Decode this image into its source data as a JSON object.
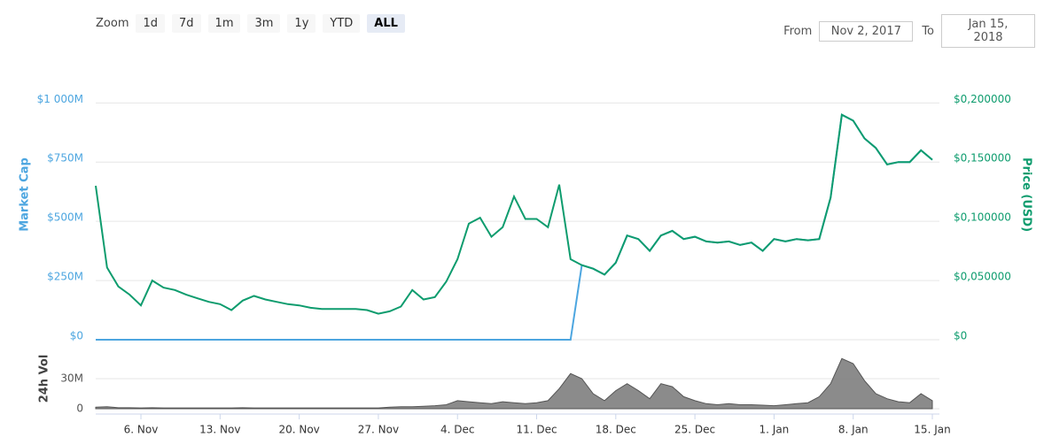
{
  "toolbar": {
    "zoom_label": "Zoom",
    "buttons": [
      "1d",
      "7d",
      "1m",
      "3m",
      "1y",
      "YTD",
      "ALL"
    ],
    "active_index": 6,
    "from_label": "From",
    "from_value": "Nov 2, 2017",
    "to_label": "To",
    "to_value": "Jan 15, 2018"
  },
  "chart_data": [
    {
      "type": "line",
      "ylabel": "Market Cap",
      "y2label": "Price (USD)",
      "x": [
        "2017-11-02",
        "2017-11-03",
        "2017-11-04",
        "2017-11-05",
        "2017-11-06",
        "2017-11-07",
        "2017-11-08",
        "2017-11-09",
        "2017-11-10",
        "2017-11-11",
        "2017-11-12",
        "2017-11-13",
        "2017-11-14",
        "2017-11-15",
        "2017-11-16",
        "2017-11-17",
        "2017-11-18",
        "2017-11-19",
        "2017-11-20",
        "2017-11-21",
        "2017-11-22",
        "2017-11-23",
        "2017-11-24",
        "2017-11-25",
        "2017-11-26",
        "2017-11-27",
        "2017-11-28",
        "2017-11-29",
        "2017-11-30",
        "2017-12-01",
        "2017-12-02",
        "2017-12-03",
        "2017-12-04",
        "2017-12-05",
        "2017-12-06",
        "2017-12-07",
        "2017-12-08",
        "2017-12-09",
        "2017-12-10",
        "2017-12-11",
        "2017-12-12",
        "2017-12-13",
        "2017-12-14",
        "2017-12-15",
        "2017-12-16",
        "2017-12-17",
        "2017-12-18",
        "2017-12-19",
        "2017-12-20",
        "2017-12-21",
        "2017-12-22",
        "2017-12-23",
        "2017-12-24",
        "2017-12-25",
        "2017-12-26",
        "2017-12-27",
        "2017-12-28",
        "2017-12-29",
        "2017-12-30",
        "2017-12-31",
        "2018-01-01",
        "2018-01-02",
        "2018-01-03",
        "2018-01-04",
        "2018-01-05",
        "2018-01-06",
        "2018-01-07",
        "2018-01-08",
        "2018-01-09",
        "2018-01-10",
        "2018-01-11",
        "2018-01-12",
        "2018-01-13",
        "2018-01-14",
        "2018-01-15"
      ],
      "xlim": [
        "2017-11-02",
        "2018-01-15"
      ],
      "ylim": [
        0,
        1080
      ],
      "yticks": [
        {
          "value": 0,
          "label": "$0"
        },
        {
          "value": 250,
          "label": "$250M"
        },
        {
          "value": 500,
          "label": "$500M"
        },
        {
          "value": 750,
          "label": "$750M"
        },
        {
          "value": 1000,
          "label": "$1 000M"
        }
      ],
      "y2lim": [
        0,
        0.216
      ],
      "y2ticks": [
        {
          "value": 0,
          "label": "$0"
        },
        {
          "value": 0.05,
          "label": "$0,050000"
        },
        {
          "value": 0.1,
          "label": "$0,100000"
        },
        {
          "value": 0.15,
          "label": "$0,150000"
        },
        {
          "value": 0.2,
          "label": "$0,200000"
        }
      ],
      "grid": true,
      "series": [
        {
          "color": "#4da6e0",
          "axis": "y",
          "values": [
            0,
            0,
            0,
            0,
            0,
            0,
            0,
            0,
            0,
            0,
            0,
            0,
            0,
            0,
            0,
            0,
            0,
            0,
            0,
            0,
            0,
            0,
            0,
            0,
            0,
            0,
            0,
            0,
            0,
            0,
            0,
            0,
            0,
            0,
            0,
            0,
            0,
            0,
            0,
            0,
            0,
            0,
            0,
            315,
            300,
            275,
            325,
            440,
            425,
            375,
            440,
            460,
            425,
            435,
            415,
            410,
            415,
            400,
            410,
            375,
            425,
            415,
            425,
            420,
            425,
            600,
            950,
            925,
            850,
            810,
            740,
            750,
            750,
            800,
            760
          ]
        },
        {
          "color": "#0e9c6e",
          "axis": "y2",
          "values": [
            0.13,
            0.061,
            0.045,
            0.038,
            0.029,
            0.05,
            0.044,
            0.042,
            0.038,
            0.035,
            0.032,
            0.03,
            0.025,
            0.033,
            0.037,
            0.034,
            0.032,
            0.03,
            0.029,
            0.027,
            0.026,
            0.026,
            0.026,
            0.026,
            0.025,
            0.022,
            0.024,
            0.028,
            0.042,
            0.034,
            0.036,
            0.049,
            0.068,
            0.098,
            0.103,
            0.087,
            0.095,
            0.121,
            0.102,
            0.102,
            0.095,
            0.131,
            0.068,
            0.063,
            0.06,
            0.055,
            0.065,
            0.088,
            0.085,
            0.075,
            0.088,
            0.092,
            0.085,
            0.087,
            0.083,
            0.082,
            0.083,
            0.08,
            0.082,
            0.075,
            0.085,
            0.083,
            0.085,
            0.084,
            0.085,
            0.12,
            0.19,
            0.185,
            0.17,
            0.162,
            0.148,
            0.15,
            0.15,
            0.16,
            0.152
          ]
        }
      ]
    },
    {
      "type": "area",
      "ylabel": "24h Vol",
      "x": [
        "2017-11-02",
        "2017-11-03",
        "2017-11-04",
        "2017-11-05",
        "2017-11-06",
        "2017-11-07",
        "2017-11-08",
        "2017-11-09",
        "2017-11-10",
        "2017-11-11",
        "2017-11-12",
        "2017-11-13",
        "2017-11-14",
        "2017-11-15",
        "2017-11-16",
        "2017-11-17",
        "2017-11-18",
        "2017-11-19",
        "2017-11-20",
        "2017-11-21",
        "2017-11-22",
        "2017-11-23",
        "2017-11-24",
        "2017-11-25",
        "2017-11-26",
        "2017-11-27",
        "2017-11-28",
        "2017-11-29",
        "2017-11-30",
        "2017-12-01",
        "2017-12-02",
        "2017-12-03",
        "2017-12-04",
        "2017-12-05",
        "2017-12-06",
        "2017-12-07",
        "2017-12-08",
        "2017-12-09",
        "2017-12-10",
        "2017-12-11",
        "2017-12-12",
        "2017-12-13",
        "2017-12-14",
        "2017-12-15",
        "2017-12-16",
        "2017-12-17",
        "2017-12-18",
        "2017-12-19",
        "2017-12-20",
        "2017-12-21",
        "2017-12-22",
        "2017-12-23",
        "2017-12-24",
        "2017-12-25",
        "2017-12-26",
        "2017-12-27",
        "2017-12-28",
        "2017-12-29",
        "2017-12-30",
        "2017-12-31",
        "2018-01-01",
        "2018-01-02",
        "2018-01-03",
        "2018-01-04",
        "2018-01-05",
        "2018-01-06",
        "2018-01-07",
        "2018-01-08",
        "2018-01-09",
        "2018-01-10",
        "2018-01-11",
        "2018-01-12",
        "2018-01-13",
        "2018-01-14",
        "2018-01-15"
      ],
      "xlim": [
        "2017-11-02",
        "2018-01-15"
      ],
      "xticks": [
        {
          "value": "2017-11-06",
          "label": "6. Nov"
        },
        {
          "value": "2017-11-13",
          "label": "13. Nov"
        },
        {
          "value": "2017-11-20",
          "label": "20. Nov"
        },
        {
          "value": "2017-11-27",
          "label": "27. Nov"
        },
        {
          "value": "2017-12-04",
          "label": "4. Dec"
        },
        {
          "value": "2017-12-11",
          "label": "11. Dec"
        },
        {
          "value": "2017-12-18",
          "label": "18. Dec"
        },
        {
          "value": "2017-12-25",
          "label": "25. Dec"
        },
        {
          "value": "2018-01-01",
          "label": "1. Jan"
        },
        {
          "value": "2018-01-08",
          "label": "8. Jan"
        },
        {
          "value": "2018-01-15",
          "label": "15. Jan"
        }
      ],
      "ylim": [
        0,
        60
      ],
      "yticks": [
        0,
        {
          "value": 30,
          "label": "30M"
        }
      ],
      "grid": true,
      "color": "#777777",
      "values": [
        1.5,
        2,
        1,
        1,
        0.8,
        1,
        0.8,
        0.8,
        0.8,
        0.8,
        0.8,
        0.8,
        0.8,
        1,
        0.8,
        0.8,
        0.8,
        0.8,
        0.8,
        0.8,
        0.8,
        0.8,
        0.8,
        0.8,
        0.8,
        0.8,
        1.5,
        2,
        2,
        2.5,
        3,
        4,
        8,
        7,
        6,
        5,
        7,
        6,
        5,
        6,
        8,
        20,
        35,
        30,
        15,
        8,
        18,
        25,
        18,
        10,
        25,
        22,
        12,
        8,
        5,
        4,
        5,
        4,
        4,
        3.5,
        3,
        4,
        5,
        6,
        12,
        25,
        50,
        45,
        28,
        15,
        10,
        7,
        6,
        15,
        8
      ]
    }
  ]
}
